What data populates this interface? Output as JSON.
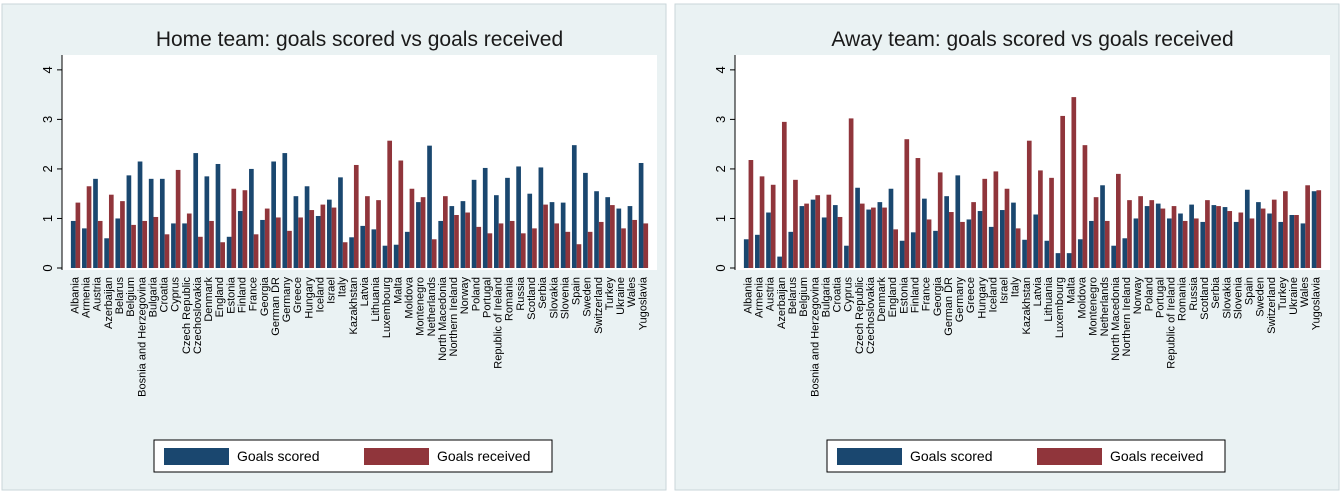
{
  "chart_data": [
    {
      "type": "bar",
      "title": "Home team: goals scored vs goals received",
      "categories": [
        "Albania",
        "Armenia",
        "Austria",
        "Azerbaijan",
        "Belarus",
        "Belgium",
        "Bosnia and Herzegovina",
        "Bulgaria",
        "Croatia",
        "Cyprus",
        "Czech Republic",
        "Czechoslovakia",
        "Denmark",
        "England",
        "Estonia",
        "Finland",
        "France",
        "Georgia",
        "German DR",
        "Germany",
        "Greece",
        "Hungary",
        "Iceland",
        "Israel",
        "Italy",
        "Kazakhstan",
        "Latvia",
        "Lithuania",
        "Luxembourg",
        "Malta",
        "Moldova",
        "Montenegro",
        "Netherlands",
        "North Macedonia",
        "Northern Ireland",
        "Norway",
        "Poland",
        "Portugal",
        "Republic of Ireland",
        "Romania",
        "Russia",
        "Scotland",
        "Serbia",
        "Slovakia",
        "Slovenia",
        "Spain",
        "Sweden",
        "Switzerland",
        "Turkey",
        "Ukraine",
        "Wales",
        "Yugoslavia"
      ],
      "series": [
        {
          "name": "Goals scored",
          "color": "#1a476f",
          "values": [
            0.95,
            0.8,
            1.8,
            0.6,
            1.0,
            1.87,
            2.15,
            1.8,
            1.8,
            0.9,
            0.9,
            2.32,
            1.85,
            2.1,
            0.63,
            1.15,
            2.0,
            0.97,
            2.15,
            2.32,
            1.45,
            1.65,
            1.05,
            1.38,
            1.83,
            0.62,
            0.85,
            0.78,
            0.45,
            0.47,
            0.73,
            1.33,
            2.47,
            0.95,
            1.25,
            1.35,
            1.78,
            2.02,
            1.47,
            1.82,
            2.05,
            1.5,
            2.03,
            1.33,
            1.32,
            2.48,
            1.92,
            1.55,
            1.43,
            1.2,
            1.25,
            2.12
          ]
        },
        {
          "name": "Goals received",
          "color": "#90353b",
          "values": [
            1.32,
            1.65,
            0.95,
            1.48,
            1.35,
            0.87,
            0.95,
            1.03,
            0.68,
            1.98,
            1.1,
            0.63,
            0.95,
            0.52,
            1.6,
            1.57,
            0.68,
            1.2,
            1.02,
            0.75,
            1.02,
            1.17,
            1.28,
            1.22,
            0.52,
            2.08,
            1.45,
            1.37,
            2.57,
            2.17,
            1.6,
            1.43,
            0.58,
            1.45,
            1.07,
            1.12,
            0.83,
            0.7,
            0.9,
            0.95,
            0.7,
            0.8,
            1.28,
            0.9,
            0.73,
            0.48,
            0.73,
            0.93,
            1.27,
            0.8,
            0.97,
            0.9
          ]
        }
      ],
      "ylim": [
        0,
        4.3
      ],
      "yticks": [
        0,
        1,
        2,
        3,
        4
      ],
      "grid": false
    },
    {
      "type": "bar",
      "title": "Away team: goals scored vs goals received",
      "categories": [
        "Albania",
        "Armenia",
        "Austria",
        "Azerbaijan",
        "Belarus",
        "Belgium",
        "Bosnia and Herzegovina",
        "Bulgaria",
        "Croatia",
        "Cyprus",
        "Czech Republic",
        "Czechoslovakia",
        "Denmark",
        "England",
        "Estonia",
        "Finland",
        "France",
        "Georgia",
        "German DR",
        "Germany",
        "Greece",
        "Hungary",
        "Iceland",
        "Israel",
        "Italy",
        "Kazakhstan",
        "Latvia",
        "Lithuania",
        "Luxembourg",
        "Malta",
        "Moldova",
        "Montenegro",
        "Netherlands",
        "North Macedonia",
        "Northern Ireland",
        "Norway",
        "Poland",
        "Portugal",
        "Republic of Ireland",
        "Romania",
        "Russia",
        "Scotland",
        "Serbia",
        "Slovakia",
        "Slovenia",
        "Spain",
        "Sweden",
        "Switzerland",
        "Turkey",
        "Ukraine",
        "Wales",
        "Yugoslavia"
      ],
      "series": [
        {
          "name": "Goals scored",
          "color": "#1a476f",
          "values": [
            0.58,
            0.67,
            1.12,
            0.23,
            0.73,
            1.25,
            1.38,
            1.02,
            1.27,
            0.45,
            1.62,
            1.18,
            1.33,
            1.6,
            0.55,
            0.72,
            1.4,
            0.75,
            1.45,
            1.87,
            0.98,
            1.15,
            0.83,
            1.17,
            1.32,
            0.57,
            1.08,
            0.55,
            0.3,
            0.3,
            0.58,
            0.95,
            1.67,
            0.45,
            0.6,
            1.0,
            1.25,
            1.3,
            1.0,
            1.1,
            1.28,
            0.93,
            1.27,
            1.23,
            0.93,
            1.58,
            1.33,
            1.1,
            0.93,
            1.07,
            0.9,
            1.55
          ]
        },
        {
          "name": "Goals received",
          "color": "#90353b",
          "values": [
            2.18,
            1.85,
            1.68,
            2.95,
            1.78,
            1.3,
            1.47,
            1.48,
            1.03,
            3.02,
            1.3,
            1.22,
            1.22,
            0.78,
            2.6,
            2.22,
            0.98,
            1.93,
            1.13,
            0.93,
            1.33,
            1.8,
            1.95,
            1.6,
            0.8,
            2.57,
            1.97,
            1.82,
            3.07,
            3.45,
            2.48,
            1.43,
            0.95,
            1.9,
            1.37,
            1.45,
            1.37,
            1.2,
            1.25,
            0.95,
            1.0,
            1.37,
            1.25,
            1.15,
            1.12,
            1.0,
            1.2,
            1.38,
            1.55,
            1.07,
            1.67,
            1.57
          ]
        }
      ],
      "ylim": [
        0,
        4.3
      ],
      "yticks": [
        0,
        1,
        2,
        3,
        4
      ],
      "grid": false
    }
  ]
}
